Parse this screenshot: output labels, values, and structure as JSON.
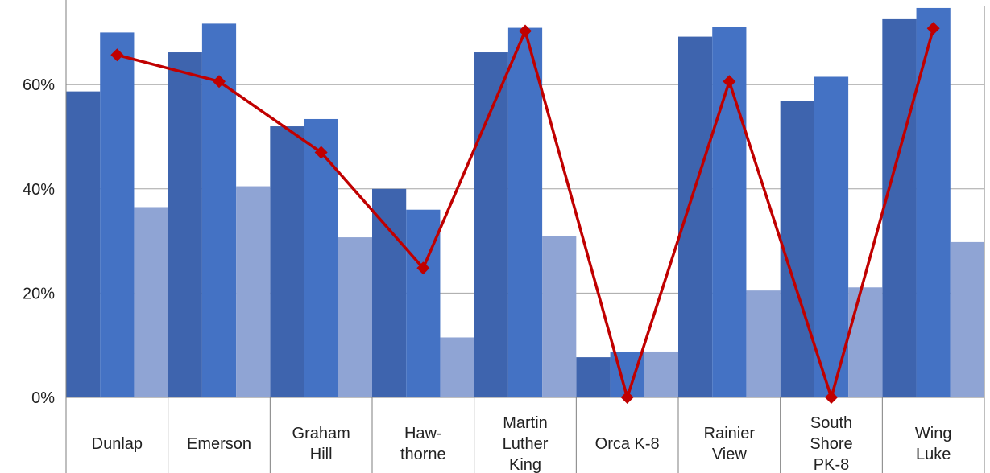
{
  "chart_data": {
    "type": "bar",
    "categories": [
      [
        "Dunlap"
      ],
      [
        "Emerson"
      ],
      [
        "Graham",
        "Hill"
      ],
      [
        "Haw-",
        "thorne"
      ],
      [
        "Martin",
        "Luther",
        "King"
      ],
      [
        "Orca K-8"
      ],
      [
        "Rainier",
        "View"
      ],
      [
        "South",
        "Shore",
        "PK-8"
      ],
      [
        "Wing",
        "Luke"
      ]
    ],
    "y_ticks": [
      "0%",
      "20%",
      "40%",
      "60%"
    ],
    "ylim": [
      0,
      75
    ],
    "grid": true,
    "series": [
      {
        "type": "bar",
        "color": "#3e64ae",
        "values": [
          58.7,
          66.2,
          52.0,
          40.0,
          66.2,
          7.7,
          69.2,
          56.9,
          72.7
        ]
      },
      {
        "type": "bar",
        "color": "#4472c4",
        "values": [
          70.0,
          71.7,
          53.4,
          36.0,
          70.9,
          8.7,
          71.0,
          61.5,
          74.7
        ]
      },
      {
        "type": "bar",
        "color": "#8fa4d4",
        "values": [
          36.5,
          40.5,
          30.7,
          11.5,
          31.0,
          8.8,
          20.5,
          21.1,
          29.8
        ]
      },
      {
        "type": "line",
        "color": "#c00000",
        "marker": "diamond",
        "values": [
          65.7,
          60.6,
          47.0,
          24.8,
          70.3,
          0.0,
          60.6,
          0.0,
          70.8
        ]
      }
    ]
  }
}
